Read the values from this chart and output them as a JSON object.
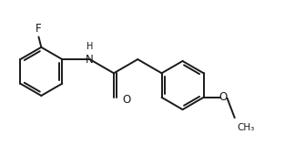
{
  "background": "#ffffff",
  "line_color": "#1a1a1a",
  "line_width": 1.4,
  "font_size": 8.5,
  "font_size_small": 7.5,
  "xlim": [
    -0.85,
    2.55
  ],
  "ylim": [
    -0.62,
    0.68
  ]
}
